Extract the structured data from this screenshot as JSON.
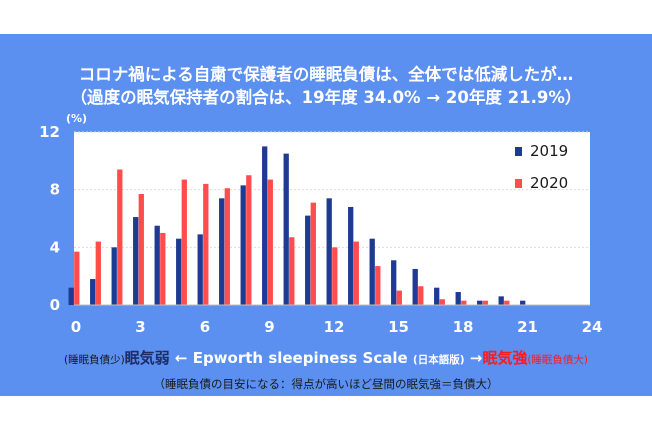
{
  "title_line1": "コロナ禍による自粛で保護者の睡眠負債は、全体では低減したが…",
  "title_line2": "（過度の眠気保持者の割合は、19年度 34.0% → 20年度 21.9%）",
  "colors": {
    "background": "#5b8ff0",
    "series_2019": "#1f3a93",
    "series_2020": "#ff4d4d"
  },
  "x_caption": {
    "left_small": "(睡眠負債少)",
    "left_bold": "眠気弱",
    "arrow_left": " ← ",
    "scale_name": "Epworth sleepiness Scale ",
    "edition": "(日本語版)",
    "arrow_right": " →",
    "right_bold": "眠気強",
    "right_small": "(睡眠負債大)"
  },
  "footnote": "（睡眠負債の目安になる：得点が高いほど昼間の眠気強＝負債大）",
  "chart_data": {
    "type": "bar",
    "ylabel": "(%)",
    "xlabel": "",
    "xlim": [
      0,
      24
    ],
    "ylim": [
      0,
      12
    ],
    "x_ticks": [
      "0",
      "3",
      "6",
      "9",
      "12",
      "15",
      "18",
      "21",
      "24"
    ],
    "y_ticks": [
      "0",
      "4",
      "8",
      "12"
    ],
    "grid": true,
    "legend_position": "top-right",
    "categories": [
      0,
      1,
      2,
      3,
      4,
      5,
      6,
      7,
      8,
      9,
      10,
      11,
      12,
      13,
      14,
      15,
      16,
      17,
      18,
      19,
      20,
      21,
      22,
      23,
      24
    ],
    "series": [
      {
        "name": "2019",
        "values": [
          1.2,
          1.8,
          4.0,
          6.1,
          5.5,
          4.6,
          4.9,
          7.4,
          8.3,
          11.0,
          10.5,
          6.2,
          7.4,
          6.8,
          4.6,
          3.1,
          2.5,
          1.2,
          0.9,
          0.3,
          0.6,
          0.3,
          0,
          0,
          0
        ]
      },
      {
        "name": "2020",
        "values": [
          3.7,
          4.4,
          9.4,
          7.7,
          5.0,
          8.7,
          8.4,
          8.1,
          9.0,
          8.7,
          4.7,
          7.1,
          4.0,
          4.4,
          2.7,
          1.0,
          1.3,
          0.4,
          0.3,
          0.3,
          0.3,
          0,
          0,
          0,
          0
        ]
      }
    ]
  }
}
